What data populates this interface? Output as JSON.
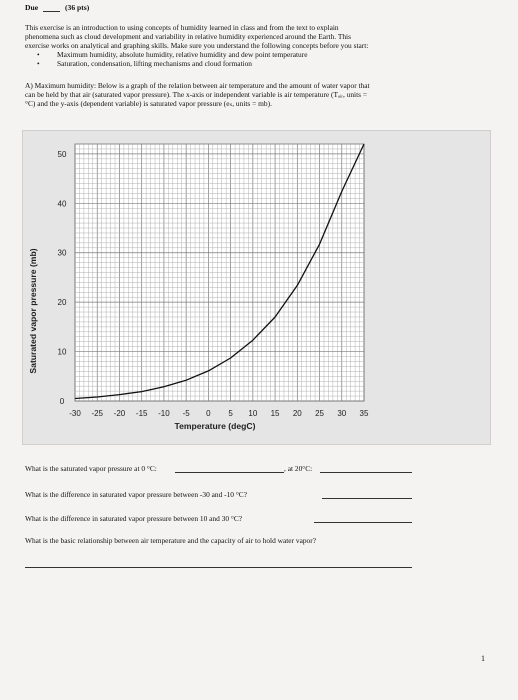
{
  "header": {
    "due_label": "Due",
    "points": "(36 pts)"
  },
  "intro": {
    "line1": "This exercise is an introduction to using concepts of humidity learned in class and from the text to explain",
    "line2": "phenomena such as cloud development and variability in relative humidity experienced around the Earth. This",
    "line3": "exercise works on analytical and graphing skills. Make sure you understand the following concepts before you start:",
    "bullets": [
      "Maximum humidity, absolute humidity, relative humidity and dew point temperature",
      "Saturation, condensation, lifting mechanisms and cloud formation"
    ]
  },
  "partA": {
    "line1": "A) Maximum humidity: Below is a graph of the relation between air temperature and the amount of water vapor that",
    "line2": "can be held by that air (saturated vapor pressure). The x-axis or independent variable is air temperature (Tₐᵢᵣ, units =",
    "line3": "°C) and the y-axis (dependent variable) is saturated vapor pressure (eₛ, units = mb)."
  },
  "chart_data": {
    "type": "line",
    "title": "",
    "xlabel": "Temperature (degC)",
    "ylabel": "Saturated vapor pressure (mb)",
    "xlim": [
      -30,
      35
    ],
    "ylim": [
      0,
      52
    ],
    "xticks": [
      -30,
      -25,
      -20,
      -15,
      -10,
      -5,
      0,
      5,
      10,
      15,
      20,
      25,
      30,
      35
    ],
    "yticks": [
      0,
      10,
      20,
      30,
      40,
      50
    ],
    "grid": true,
    "series": [
      {
        "x": [
          -30,
          -25,
          -20,
          -15,
          -10,
          -5,
          0,
          5,
          10,
          15,
          20,
          25,
          30,
          35
        ],
        "values": [
          0.5,
          0.8,
          1.3,
          1.9,
          2.9,
          4.2,
          6.1,
          8.7,
          12.3,
          17.0,
          23.4,
          31.7,
          42.4,
          52.0
        ]
      }
    ]
  },
  "questions": {
    "q1a": "What is the saturated vapor pressure at 0 °C:",
    "q1b": ", at 20°C:",
    "q2": "What is the difference in saturated vapor pressure between -30 and -10 °C?",
    "q3": "What is the difference in saturated vapor pressure between 10 and 30 °C?",
    "q4": "What is the basic relationship between air temperature and the capacity of air to hold water vapor?"
  },
  "footer": {
    "page_number": "1"
  }
}
